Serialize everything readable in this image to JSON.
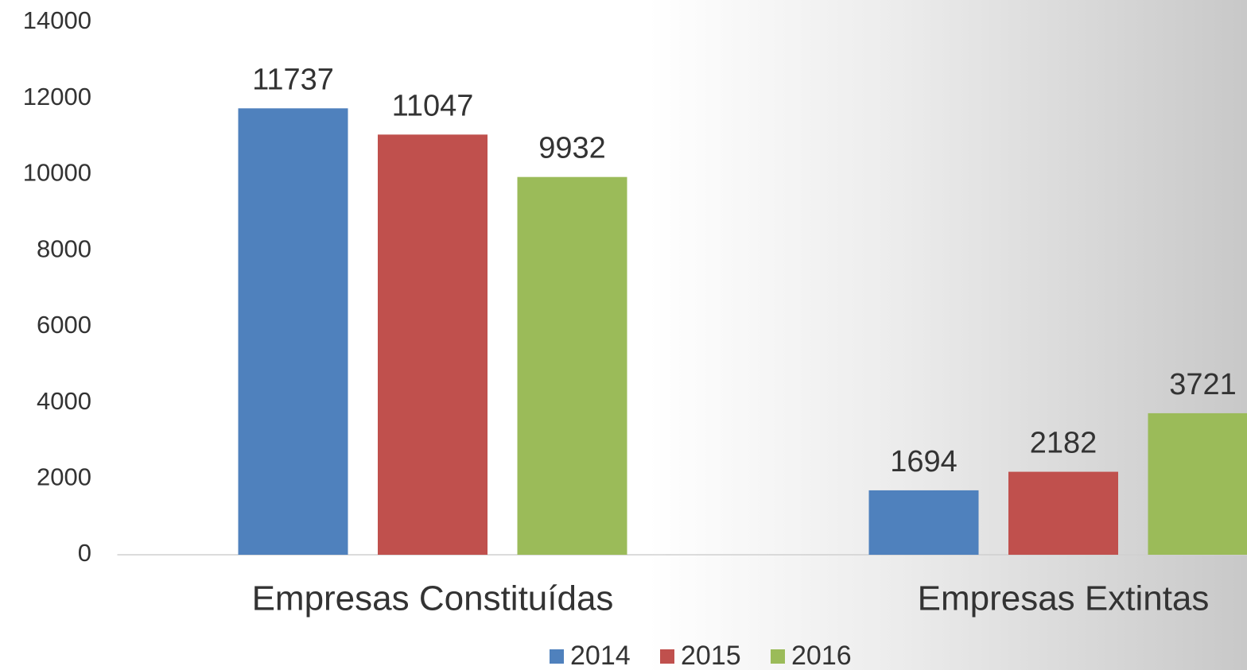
{
  "chart_data": {
    "type": "bar",
    "categories": [
      "Empresas Constituídas",
      "Empresas Extintas"
    ],
    "series": [
      {
        "name": "2014",
        "color": "#4f81bd",
        "values": [
          11737,
          1694
        ]
      },
      {
        "name": "2015",
        "color": "#c0504d",
        "values": [
          11047,
          2182
        ]
      },
      {
        "name": "2016",
        "color": "#9bbb59",
        "values": [
          9932,
          3721
        ]
      }
    ],
    "ylim": [
      0,
      14000
    ],
    "yticks": [
      0,
      2000,
      4000,
      6000,
      8000,
      10000,
      12000,
      14000
    ],
    "grid": false,
    "legend": "bottom"
  }
}
